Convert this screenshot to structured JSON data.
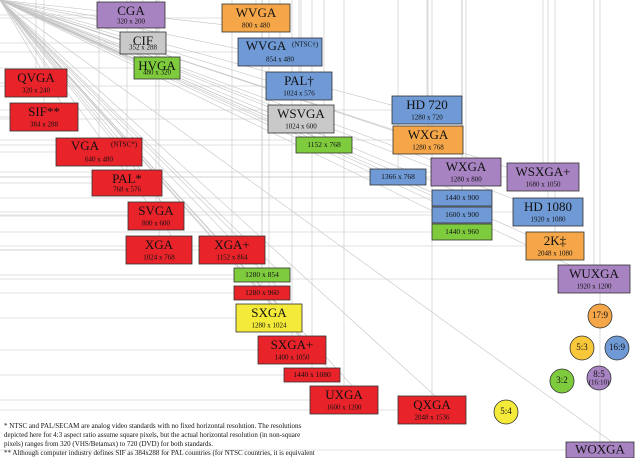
{
  "nodes": [
    {
      "label": "CGA",
      "sub": "320 x 200"
    },
    {
      "label": "CIF",
      "sub": "352 x 288"
    },
    {
      "label": "HVGA",
      "sub": "480 x 320"
    },
    {
      "label": "QVGA",
      "sub": "320 x 240"
    },
    {
      "label": "SIF**",
      "sub": "384 x 288"
    },
    {
      "label": "VGA",
      "tag": "(NTSC*)",
      "sub": "640 x 480"
    },
    {
      "label": "PAL*",
      "sub": "768 x 576"
    },
    {
      "label": "SVGA",
      "sub": "800 x 600"
    },
    {
      "label": "XGA",
      "sub": "1024 x 768"
    },
    {
      "label": "XGA+",
      "sub": "1152 x 864"
    },
    {
      "label": "WVGA",
      "sub": "800 x 480"
    },
    {
      "label": "WVGA",
      "tag": "(NTSC†)",
      "sub": "854 x 480"
    },
    {
      "label": "PAL†",
      "sub": "1024 x 576"
    },
    {
      "label": "WSVGA",
      "sub": "1024 x 600"
    },
    {
      "label": "1152 x 768"
    },
    {
      "label": "HD 720",
      "sub": "1280 x 720"
    },
    {
      "label": "WXGA",
      "sub": "1280 x 768"
    },
    {
      "label": "1366 x 768"
    },
    {
      "label": "WXGA",
      "sub": "1280 x 800"
    },
    {
      "label": "1440 x 900"
    },
    {
      "label": "1600 x 900"
    },
    {
      "label": "1440 x 960"
    },
    {
      "label": "WSXGA+",
      "sub": "1680 x 1050"
    },
    {
      "label": "HD 1080",
      "sub": "1920 x 1080"
    },
    {
      "label": "2K‡",
      "sub": "2048 x 1080"
    },
    {
      "label": "WUXGA",
      "sub": "1920 x 1200"
    },
    {
      "label": "1280 x 854"
    },
    {
      "label": "1280 x 960"
    },
    {
      "label": "SXGA",
      "sub": "1280 x 1024"
    },
    {
      "label": "SXGA+",
      "sub": "1400 x 1050"
    },
    {
      "label": "1440 x 1080"
    },
    {
      "label": "UXGA",
      "sub": "1600 x 1200"
    },
    {
      "label": "QXGA",
      "sub": "2048 x 1536"
    },
    {
      "label": "WOXGA"
    }
  ],
  "ratios": [
    {
      "label": "17:9"
    },
    {
      "label": "5:3"
    },
    {
      "label": "16:9"
    },
    {
      "label": "8:5",
      "sub": "(16:10)"
    },
    {
      "label": "3:2"
    },
    {
      "label": "5:4"
    }
  ],
  "notes": [
    "* NTSC and PAL/SECAM are analog video standards with no fixed horizontal resolution. The resolutions",
    "depicted here for 4:3 aspect ratio assume square pixels, but the actual horizontal resolution (in non-square",
    "pixels) ranges from 320 (VHS/Betamax) to 720 (DVD) for both standards.",
    "** Although computer industry defines SIF as 384x288 for PAL countries (for NTSC countries, it is equivalent"
  ]
}
